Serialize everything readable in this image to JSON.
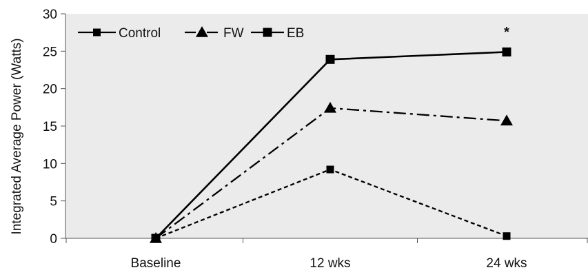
{
  "chart_data": {
    "type": "line",
    "categories": [
      "Baseline",
      "12 wks",
      "24 wks"
    ],
    "ylabel": "Integrated Average Power (Watts)",
    "xlabel": "",
    "title": "",
    "ylim": [
      0,
      30
    ],
    "yticks": [
      0,
      5,
      10,
      15,
      20,
      25,
      30
    ],
    "grid": false,
    "legend_position": "top-left",
    "series": [
      {
        "name": "Control",
        "values": [
          0,
          9.2,
          0.3
        ],
        "line_style": "dotted",
        "marker": "square"
      },
      {
        "name": "FW",
        "values": [
          0,
          17.4,
          15.7
        ],
        "line_style": "dash-dot",
        "marker": "triangle"
      },
      {
        "name": "EB",
        "values": [
          0,
          23.9,
          24.9
        ],
        "line_style": "solid",
        "marker": "square"
      }
    ],
    "annotations": [
      {
        "text": "*",
        "category": "24 wks",
        "y": 27.5
      }
    ],
    "colors": {
      "plot_background": "#ebebeb",
      "line": "#000000"
    }
  }
}
